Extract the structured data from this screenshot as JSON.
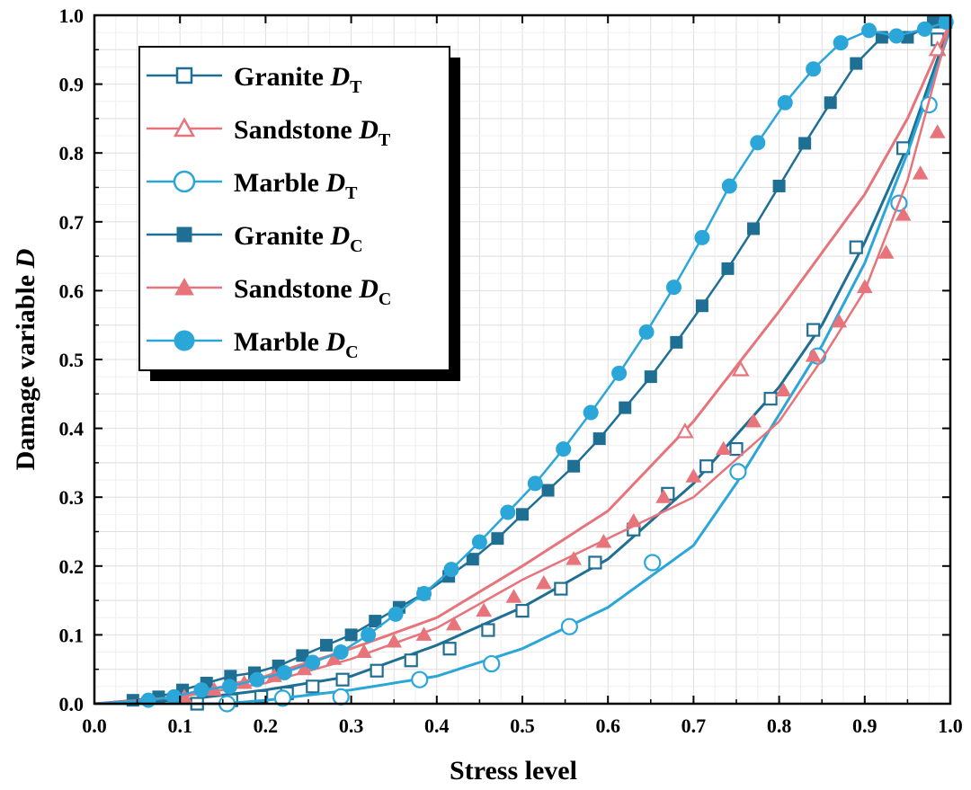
{
  "chart_data": {
    "type": "line",
    "title": "",
    "xlabel": "Stress level",
    "ylabel": "Damage variable D",
    "xlim": [
      0.0,
      1.0
    ],
    "ylim": [
      0.0,
      1.0
    ],
    "x_ticks": [
      "0.0",
      "0.1",
      "0.2",
      "0.3",
      "0.4",
      "0.5",
      "0.6",
      "0.7",
      "0.8",
      "0.9",
      "1.0"
    ],
    "y_ticks": [
      "0.0",
      "0.1",
      "0.2",
      "0.3",
      "0.4",
      "0.5",
      "0.6",
      "0.7",
      "0.8",
      "0.9",
      "1.0"
    ],
    "grid": true,
    "legend_position": "top-left",
    "series": [
      {
        "name": "Granite D_T",
        "label_main": "Granite ",
        "label_italic": "D",
        "label_sub": "T",
        "color": "#1f6f94",
        "marker": "square",
        "filled": false,
        "x": [
          0.0,
          0.1,
          0.2,
          0.3,
          0.4,
          0.5,
          0.6,
          0.7,
          0.8,
          0.85,
          0.9,
          0.95,
          1.0
        ],
        "y": [
          0.0,
          0.005,
          0.02,
          0.04,
          0.085,
          0.14,
          0.21,
          0.32,
          0.46,
          0.55,
          0.67,
          0.81,
          0.99
        ],
        "marker_x": [
          0.12,
          0.16,
          0.195,
          0.225,
          0.255,
          0.29,
          0.33,
          0.37,
          0.415,
          0.46,
          0.5,
          0.545,
          0.585,
          0.63,
          0.67,
          0.715,
          0.75,
          0.79,
          0.84,
          0.89,
          0.945,
          0.985
        ],
        "marker_y": [
          0.0,
          0.005,
          0.01,
          0.015,
          0.025,
          0.035,
          0.048,
          0.063,
          0.08,
          0.107,
          0.135,
          0.167,
          0.205,
          0.253,
          0.305,
          0.345,
          0.37,
          0.443,
          0.543,
          0.663,
          0.807,
          0.965
        ]
      },
      {
        "name": "Sandstone D_T",
        "label_main": "Sandstone ",
        "label_italic": "D",
        "label_sub": "T",
        "color": "#e6747a",
        "marker": "triangle",
        "filled": false,
        "x": [
          0.0,
          0.1,
          0.2,
          0.3,
          0.4,
          0.5,
          0.6,
          0.7,
          0.8,
          0.9,
          0.95,
          1.0
        ],
        "y": [
          0.0,
          0.01,
          0.04,
          0.08,
          0.125,
          0.2,
          0.28,
          0.41,
          0.57,
          0.74,
          0.85,
          0.99
        ],
        "marker_x": [
          0.69,
          0.755,
          0.985
        ],
        "marker_y": [
          0.395,
          0.485,
          0.95
        ]
      },
      {
        "name": "Marble D_T",
        "label_main": "Marble ",
        "label_italic": "D",
        "label_sub": "T",
        "color": "#2ba6d9",
        "marker": "circle",
        "filled": false,
        "x": [
          0.0,
          0.15,
          0.2,
          0.3,
          0.4,
          0.5,
          0.6,
          0.7,
          0.75,
          0.8,
          0.85,
          0.9,
          0.95,
          1.0
        ],
        "y": [
          0.0,
          0.0,
          0.005,
          0.02,
          0.04,
          0.08,
          0.14,
          0.23,
          0.32,
          0.42,
          0.52,
          0.64,
          0.8,
          0.98
        ],
        "marker_x": [
          0.155,
          0.22,
          0.288,
          0.38,
          0.464,
          0.555,
          0.652,
          0.752,
          0.845,
          0.94,
          0.975
        ],
        "marker_y": [
          0.0,
          0.008,
          0.01,
          0.035,
          0.058,
          0.112,
          0.205,
          0.337,
          0.505,
          0.727,
          0.87
        ]
      },
      {
        "name": "Granite D_C",
        "label_main": "Granite ",
        "label_italic": "D",
        "label_sub": "C",
        "color": "#1f6f94",
        "marker": "square",
        "filled": true,
        "x": [
          0.0,
          1.0
        ],
        "y": [
          0.0,
          1.0
        ],
        "marker_x": [
          0.045,
          0.075,
          0.103,
          0.131,
          0.159,
          0.187,
          0.215,
          0.243,
          0.271,
          0.3,
          0.328,
          0.356,
          0.385,
          0.414,
          0.442,
          0.471,
          0.5,
          0.53,
          0.56,
          0.59,
          0.62,
          0.65,
          0.68,
          0.71,
          0.74,
          0.77,
          0.8,
          0.83,
          0.86,
          0.89,
          0.92,
          0.95,
          0.98,
          0.995
        ],
        "marker_y": [
          0.005,
          0.01,
          0.02,
          0.03,
          0.04,
          0.045,
          0.055,
          0.07,
          0.085,
          0.1,
          0.12,
          0.14,
          0.16,
          0.185,
          0.21,
          0.24,
          0.275,
          0.31,
          0.345,
          0.385,
          0.43,
          0.475,
          0.525,
          0.578,
          0.632,
          0.69,
          0.752,
          0.814,
          0.873,
          0.93,
          0.968,
          0.968,
          0.99,
          0.99
        ]
      },
      {
        "name": "Sandstone D_C",
        "label_main": "Sandstone ",
        "label_italic": "D",
        "label_sub": "C",
        "color": "#e6747a",
        "marker": "triangle",
        "filled": true,
        "x": [
          0.0,
          0.1,
          0.2,
          0.3,
          0.4,
          0.5,
          0.6,
          0.7,
          0.8,
          0.85,
          0.9,
          0.95,
          1.0
        ],
        "y": [
          0.0,
          0.01,
          0.03,
          0.065,
          0.11,
          0.18,
          0.24,
          0.3,
          0.41,
          0.5,
          0.6,
          0.76,
          0.99
        ],
        "marker_x": [
          0.105,
          0.14,
          0.175,
          0.21,
          0.245,
          0.28,
          0.315,
          0.35,
          0.385,
          0.42,
          0.455,
          0.49,
          0.525,
          0.56,
          0.595,
          0.63,
          0.665,
          0.7,
          0.735,
          0.77,
          0.805,
          0.84,
          0.87,
          0.9,
          0.925,
          0.945,
          0.965,
          0.985
        ],
        "marker_y": [
          0.01,
          0.02,
          0.03,
          0.04,
          0.05,
          0.065,
          0.075,
          0.09,
          0.1,
          0.115,
          0.135,
          0.155,
          0.175,
          0.21,
          0.235,
          0.265,
          0.3,
          0.33,
          0.37,
          0.41,
          0.455,
          0.505,
          0.555,
          0.605,
          0.655,
          0.71,
          0.77,
          0.83
        ]
      },
      {
        "name": "Marble D_C",
        "label_main": "Marble ",
        "label_italic": "D",
        "label_sub": "C",
        "color": "#2ba6d9",
        "marker": "circle",
        "filled": true,
        "x": [
          0.0,
          1.0
        ],
        "y": [
          0.0,
          1.0
        ],
        "marker_x": [
          0.063,
          0.093,
          0.125,
          0.158,
          0.19,
          0.222,
          0.255,
          0.288,
          0.32,
          0.352,
          0.385,
          0.417,
          0.45,
          0.483,
          0.515,
          0.548,
          0.58,
          0.613,
          0.645,
          0.677,
          0.71,
          0.742,
          0.775,
          0.807,
          0.84,
          0.872,
          0.905,
          0.937,
          0.97,
          0.995
        ],
        "marker_y": [
          0.005,
          0.01,
          0.02,
          0.025,
          0.035,
          0.045,
          0.06,
          0.075,
          0.1,
          0.13,
          0.16,
          0.195,
          0.235,
          0.278,
          0.32,
          0.37,
          0.423,
          0.48,
          0.54,
          0.605,
          0.677,
          0.752,
          0.815,
          0.873,
          0.922,
          0.96,
          0.978,
          0.97,
          0.98,
          0.99
        ]
      }
    ]
  }
}
